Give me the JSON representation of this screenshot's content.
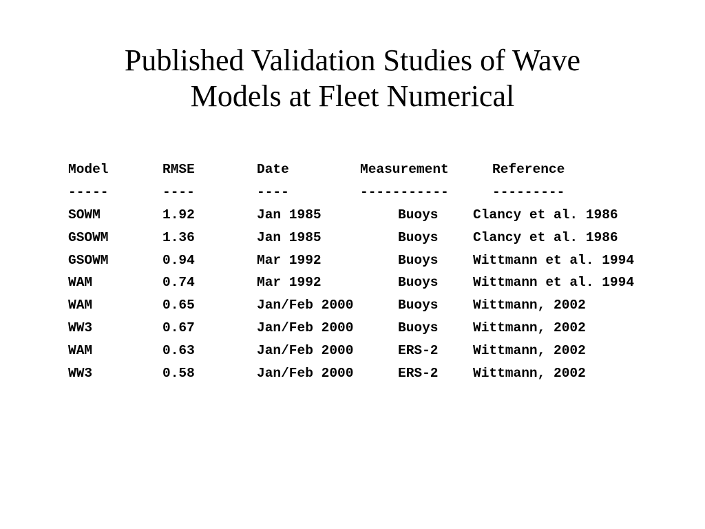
{
  "title": {
    "line1": "Published Validation Studies of Wave",
    "line2": "Models at Fleet Numerical"
  },
  "table": {
    "headers": {
      "model": "Model",
      "rmse": "RMSE",
      "date": "Date",
      "measurement": "Measurement",
      "reference": "Reference"
    },
    "separators": {
      "model": "-----",
      "rmse": "----",
      "date": "----",
      "measurement": "-----------",
      "reference": "---------"
    },
    "rows": [
      {
        "model": "SOWM",
        "rmse": "1.92",
        "date": "Jan 1985",
        "measurement": "Buoys",
        "reference": "Clancy et al. 1986"
      },
      {
        "model": "GSOWM",
        "rmse": "1.36",
        "date": "Jan 1985",
        "measurement": "Buoys",
        "reference": "Clancy et al. 1986"
      },
      {
        "model": "GSOWM",
        "rmse": "0.94",
        "date": "Mar 1992",
        "measurement": "Buoys",
        "reference": "Wittmann et al. 1994"
      },
      {
        "model": "WAM",
        "rmse": "0.74",
        "date": "Mar 1992",
        "measurement": "Buoys",
        "reference": "Wittmann et al. 1994"
      },
      {
        "model": "WAM",
        "rmse": "0.65",
        "date": "Jan/Feb 2000",
        "measurement": "Buoys",
        "reference": "Wittmann, 2002"
      },
      {
        "model": "WW3",
        "rmse": "0.67",
        "date": "Jan/Feb 2000",
        "measurement": "Buoys",
        "reference": "Wittmann, 2002"
      },
      {
        "model": "WAM",
        "rmse": "0.63",
        "date": "Jan/Feb 2000",
        "measurement": "ERS-2",
        "reference": "Wittmann, 2002"
      },
      {
        "model": "WW3",
        "rmse": "0.58",
        "date": "Jan/Feb 2000",
        "measurement": "ERS-2",
        "reference": "Wittmann, 2002"
      }
    ]
  }
}
